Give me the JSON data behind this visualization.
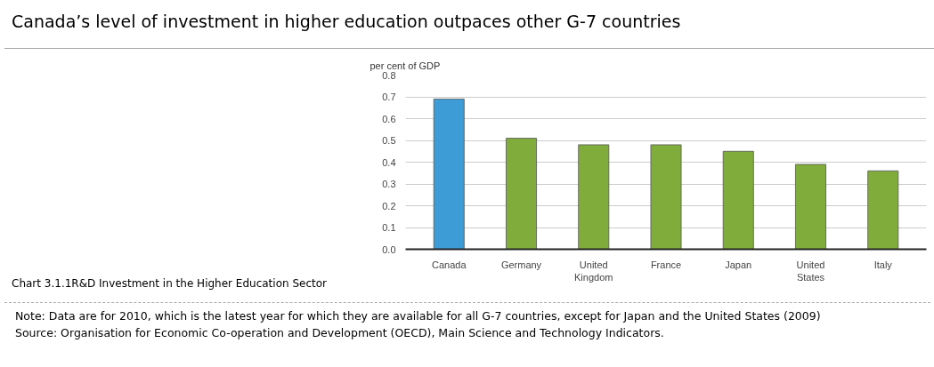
{
  "chart_data": {
    "type": "bar",
    "title": "Canada’s level of investment in higher education outpaces other G-7 countries",
    "subtitle": "Chart 3.1.1R&D Investment in the Higher Education Sector",
    "ylabel": "per cent of GDP",
    "categories": [
      "Canada",
      "Germany",
      "United Kingdom",
      "France",
      "Japan",
      "United States",
      "Italy"
    ],
    "values": [
      0.69,
      0.51,
      0.48,
      0.48,
      0.45,
      0.39,
      0.36
    ],
    "colors": [
      "#3d9bd6",
      "#80ac3c",
      "#80ac3c",
      "#80ac3c",
      "#80ac3c",
      "#80ac3c",
      "#80ac3c"
    ],
    "ylim": [
      0,
      0.8
    ],
    "yticks": [
      {
        "value": 0,
        "label": "0.0"
      },
      0.1,
      0.2,
      0.3,
      0.4,
      0.5,
      0.6,
      0.7,
      0.8
    ],
    "grid": "y",
    "annotations": [
      "Note: Data are for 2010, which is the latest year for which they are available for all G-7 countries, except for Japan and the United States (2009)",
      "Source: Organisation for Economic Co-operation and Development (OECD), Main Science and Technology Indicators."
    ]
  }
}
